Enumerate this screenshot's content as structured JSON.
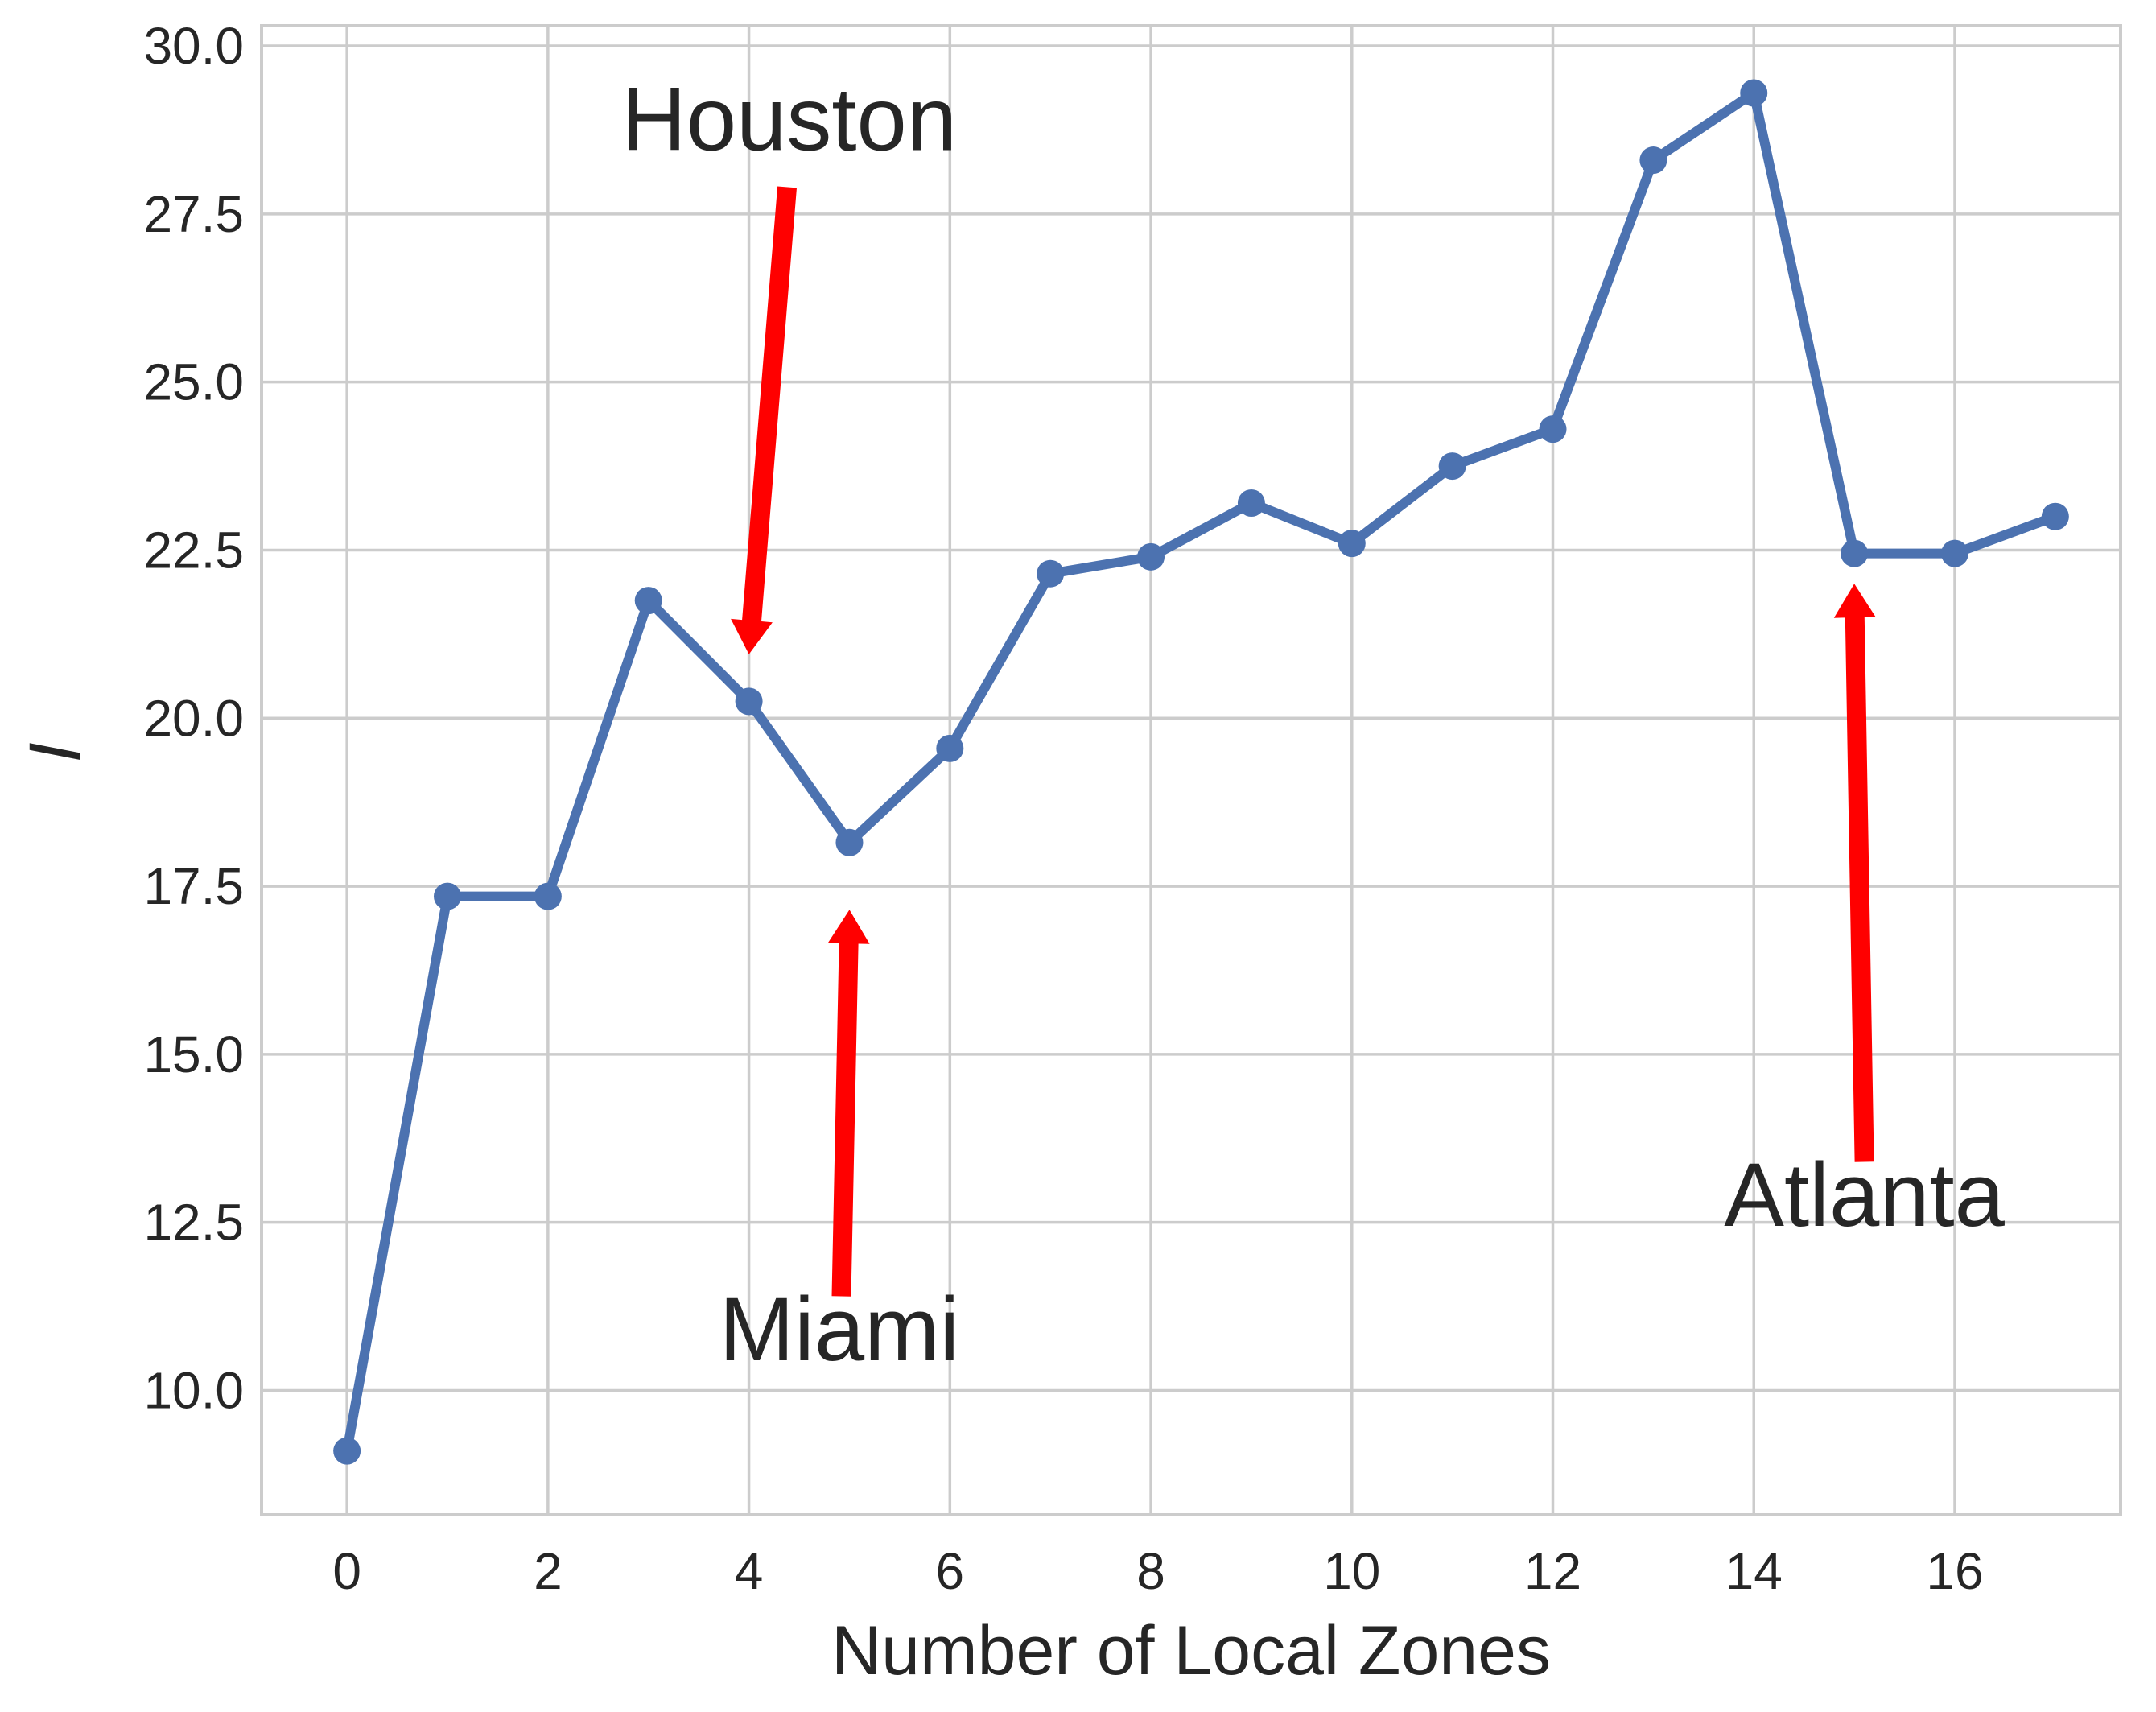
{
  "chart_data": {
    "type": "line",
    "x": [
      0,
      1,
      2,
      3,
      4,
      5,
      6,
      7,
      8,
      9,
      10,
      11,
      12,
      13,
      14,
      15,
      16,
      17
    ],
    "series": [
      {
        "values": [
          9.1,
          17.35,
          17.35,
          21.75,
          20.25,
          18.15,
          19.55,
          22.15,
          22.4,
          23.2,
          22.6,
          23.75,
          24.3,
          28.3,
          29.3,
          22.45,
          22.45,
          23.0
        ],
        "color": "#4c72b0"
      }
    ],
    "xlabel": "Number of Local Zones",
    "ylabel": "I",
    "xlim": [
      -0.85,
      17.65
    ],
    "ylim": [
      8.15,
      30.3
    ],
    "xticks": [
      0,
      2,
      4,
      6,
      8,
      10,
      12,
      14,
      16
    ],
    "yticks": [
      10.0,
      12.5,
      15.0,
      17.5,
      20.0,
      22.5,
      25.0,
      27.5,
      30.0
    ],
    "grid": true,
    "annotations": [
      {
        "id": "houston",
        "text": "Houston",
        "text_pos": [
          4.4,
          28.45
        ],
        "arrow_from": [
          4.38,
          27.9
        ],
        "arrow_to": [
          4.0,
          20.95
        ],
        "color": "#ff0000"
      },
      {
        "id": "miami",
        "text": "Miami",
        "text_pos": [
          4.9,
          10.45
        ],
        "arrow_from": [
          4.92,
          11.4
        ],
        "arrow_to": [
          5.0,
          17.15
        ],
        "color": "#ff0000"
      },
      {
        "id": "atlanta",
        "text": "Atlanta",
        "text_pos": [
          15.1,
          12.45
        ],
        "arrow_from": [
          15.1,
          13.4
        ],
        "arrow_to": [
          15.0,
          22.0
        ],
        "color": "#ff0000"
      }
    ]
  }
}
